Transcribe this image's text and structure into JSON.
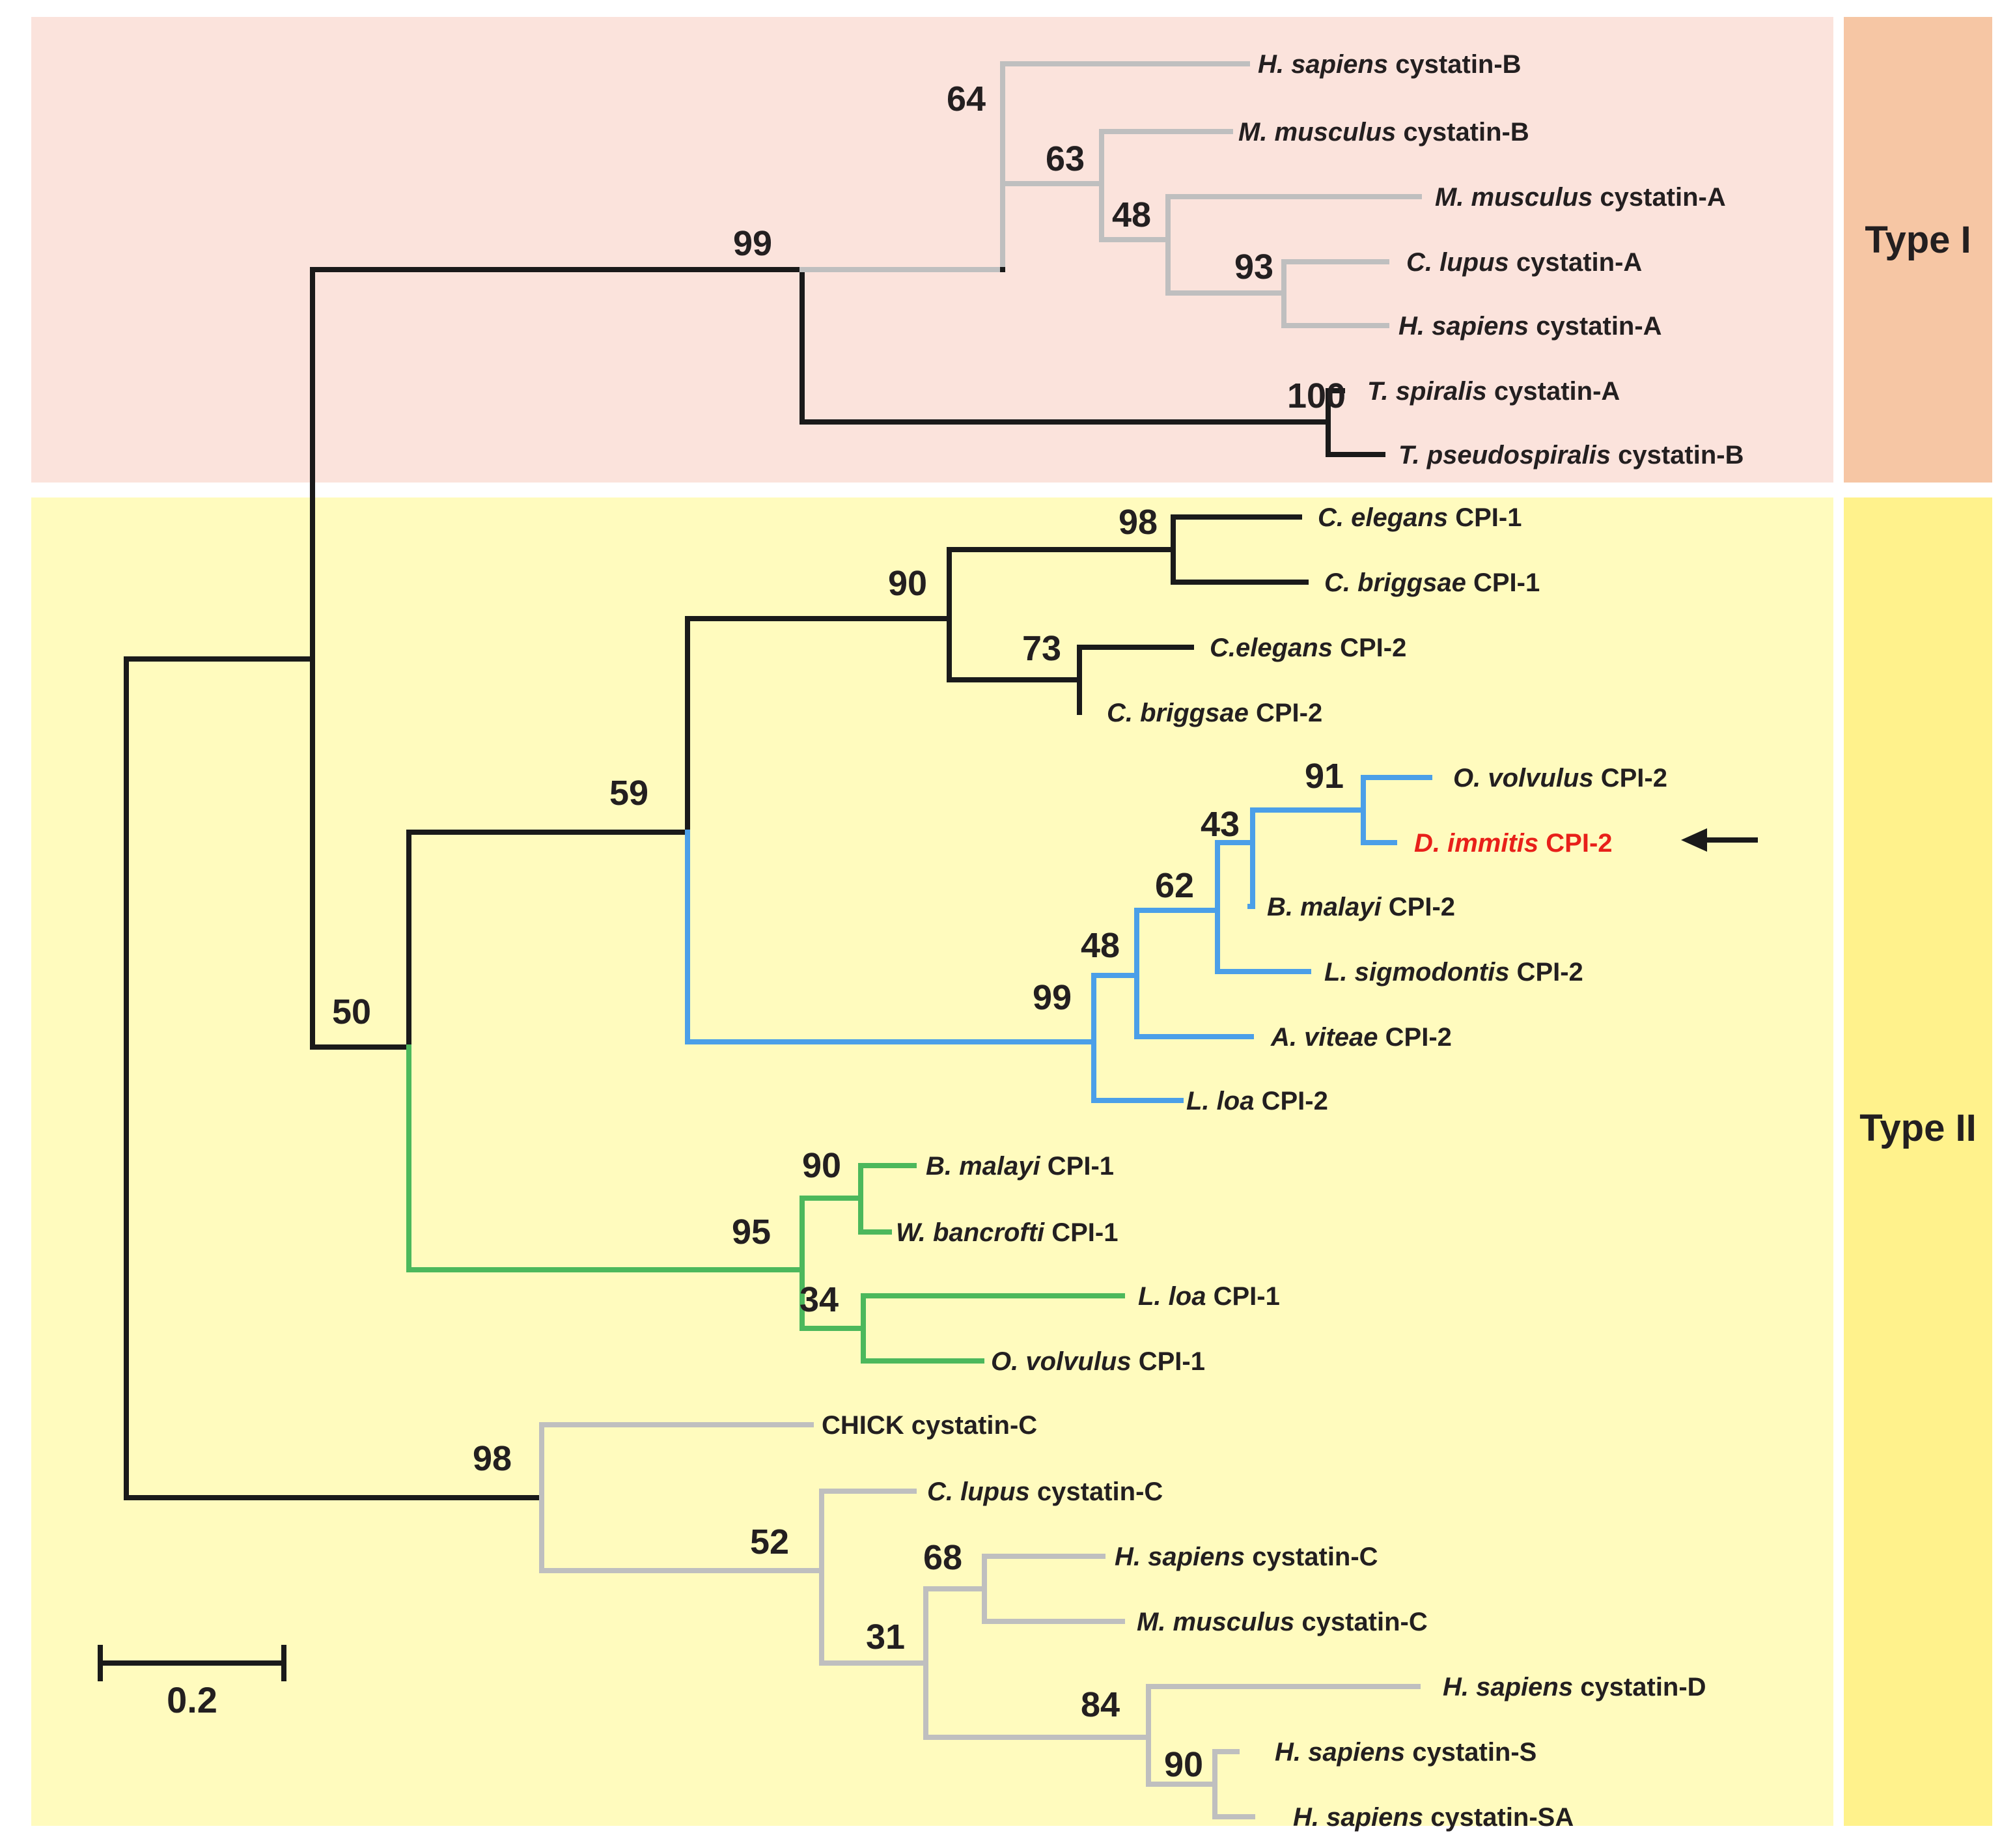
{
  "groups": {
    "type1": {
      "label": "Type I",
      "panel_color": "#fbe3dc",
      "tab_color": "#f6c6a4"
    },
    "type2": {
      "label": "Type II",
      "panel_color": "#fffbbe",
      "tab_color": "#fff28c"
    }
  },
  "colors": {
    "black": "#1a1a1a",
    "gray": "#bfbfbf",
    "blue": "#4b9fe8",
    "green": "#4cb85c",
    "highlight": "#e8201a",
    "text": "#231f20"
  },
  "scale_bar": {
    "label": "0.2",
    "value": 0.2
  },
  "arrow": {
    "target": "D. immitis CPI-2",
    "icon": "left-arrow-icon"
  },
  "leaves": [
    {
      "species": "H. sapiens",
      "protein": "cystatin-B"
    },
    {
      "species": "M. musculus",
      "protein": "cystatin-B"
    },
    {
      "species": "M. musculus",
      "protein": "cystatin-A"
    },
    {
      "species": "C. lupus",
      "protein": "cystatin-A"
    },
    {
      "species": "H. sapiens",
      "protein": "cystatin-A"
    },
    {
      "species": "T. spiralis",
      "protein": "cystatin-A"
    },
    {
      "species": "T. pseudospiralis",
      "protein": "cystatin-B"
    },
    {
      "species": "C. elegans",
      "protein": "CPI-1"
    },
    {
      "species": "C. briggsae",
      "protein": "CPI-1"
    },
    {
      "species": "C.elegans",
      "protein": "CPI-2"
    },
    {
      "species": "C. briggsae",
      "protein": "CPI-2"
    },
    {
      "species": "O. volvulus",
      "protein": "CPI-2"
    },
    {
      "species": "D. immitis",
      "protein": "CPI-2",
      "highlight": true
    },
    {
      "species": "B. malayi",
      "protein": "CPI-2"
    },
    {
      "species": "L. sigmodontis",
      "protein": "CPI-2"
    },
    {
      "species": "A. viteae",
      "protein": "CPI-2"
    },
    {
      "species": "L. loa",
      "protein": "CPI-2"
    },
    {
      "species": "B. malayi",
      "protein": "CPI-1"
    },
    {
      "species": "W. bancrofti",
      "protein": "CPI-1"
    },
    {
      "species": "L. loa",
      "protein": "CPI-1"
    },
    {
      "species": "O. volvulus",
      "protein": "CPI-1"
    },
    {
      "species": "",
      "protein": "CHICK cystatin-C"
    },
    {
      "species": "C. lupus",
      "protein": "cystatin-C"
    },
    {
      "species": "H. sapiens",
      "protein": "cystatin-C"
    },
    {
      "species": "M. musculus",
      "protein": "cystatin-C"
    },
    {
      "species": "H. sapiens",
      "protein": "cystatin-D"
    },
    {
      "species": "H. sapiens",
      "protein": "cystatin-S"
    },
    {
      "species": "H. sapiens",
      "protein": "cystatin-SA"
    }
  ],
  "bootstrap": [
    {
      "clade": "human-mouse-cystatin-B-A",
      "value": "64"
    },
    {
      "clade": "mouse-B-plus-A",
      "value": "63"
    },
    {
      "clade": "cystatin-A",
      "value": "48"
    },
    {
      "clade": "lupus-sapiens-A",
      "value": "93"
    },
    {
      "clade": "type-I-vertebrate-plus-trichinella",
      "value": "99"
    },
    {
      "clade": "trichinella",
      "value": "100"
    },
    {
      "clade": "caenorhabditis-cpi-1",
      "value": "98"
    },
    {
      "clade": "caenorhabditis",
      "value": "90"
    },
    {
      "clade": "caenorhabditis-cpi-2",
      "value": "73"
    },
    {
      "clade": "caenorhabditis-plus-filarial-cpi-2",
      "value": "59"
    },
    {
      "clade": "volvulus-immitis",
      "value": "91"
    },
    {
      "clade": "volvulus-immitis-malayi",
      "value": "43"
    },
    {
      "clade": "plus-sigmodontis",
      "value": "62"
    },
    {
      "clade": "plus-viteae",
      "value": "48"
    },
    {
      "clade": "filarial-cpi-2",
      "value": "99"
    },
    {
      "clade": "nematode-cpi",
      "value": "50"
    },
    {
      "clade": "malayi-bancrofti-cpi-1",
      "value": "90"
    },
    {
      "clade": "filarial-cpi-1",
      "value": "95"
    },
    {
      "clade": "loa-volvulus-cpi-1",
      "value": "34"
    },
    {
      "clade": "vertebrate-type-II",
      "value": "98"
    },
    {
      "clade": "mammal-type-II",
      "value": "52"
    },
    {
      "clade": "cystatin-C-D-S-SA",
      "value": "31"
    },
    {
      "clade": "sapiens-musculus-C",
      "value": "68"
    },
    {
      "clade": "cystatin-D-S-SA",
      "value": "84"
    },
    {
      "clade": "cystatin-S-SA",
      "value": "90"
    }
  ]
}
